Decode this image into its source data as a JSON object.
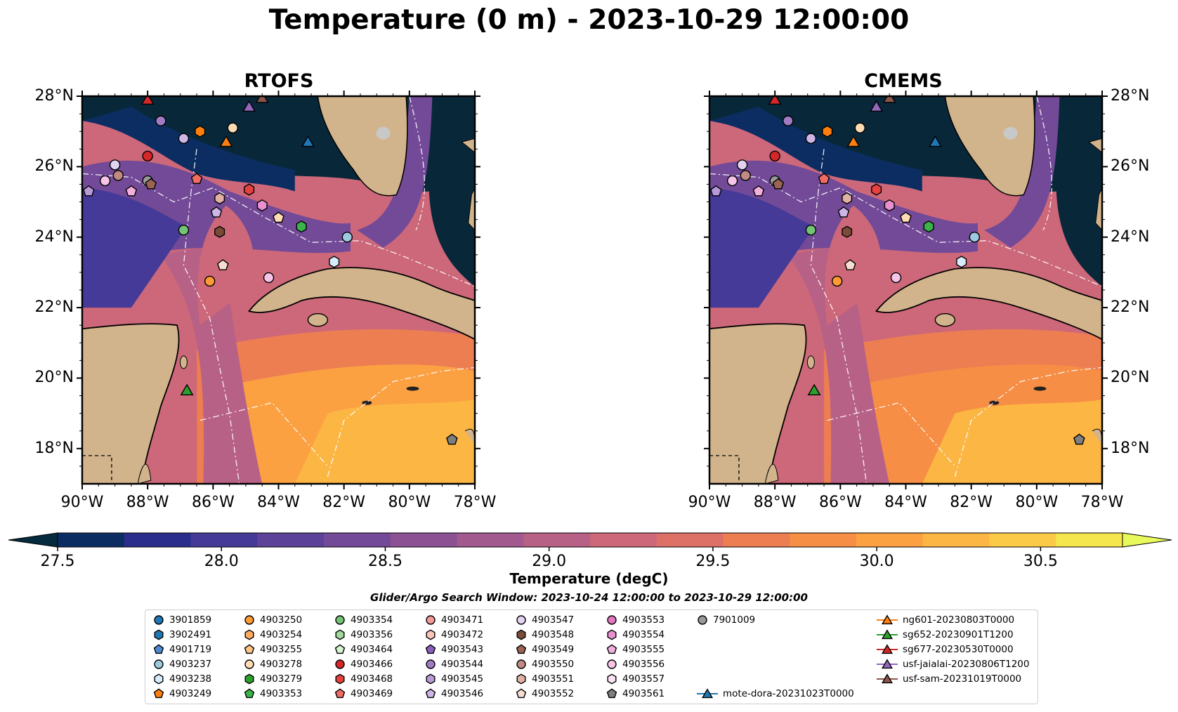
{
  "title": "Temperature (0 m) - 2023-10-29 12:00:00",
  "panels": [
    {
      "title": "RTOFS",
      "ytick_side": "left"
    },
    {
      "title": "CMEMS",
      "ytick_side": "right"
    }
  ],
  "colors": {
    "land": "#d2b48c",
    "ocean_dark": "#08283a",
    "border": "#ffffff"
  },
  "chart_data": {
    "type": "heatmap",
    "map_extent": {
      "lon": [
        -90,
        -78
      ],
      "lat": [
        17,
        28
      ]
    },
    "xticks": [
      "90°W",
      "88°W",
      "86°W",
      "84°W",
      "82°W",
      "80°W",
      "78°W"
    ],
    "yticks": [
      "18°N",
      "20°N",
      "22°N",
      "24°N",
      "26°N",
      "28°N"
    ],
    "colorbar": {
      "label": "Temperature (degC)",
      "range": [
        27.5,
        30.75
      ],
      "extend": "both",
      "ticks": [
        "27.5",
        "28.0",
        "28.5",
        "29.0",
        "29.5",
        "30.0",
        "30.5"
      ],
      "colors": [
        "#062a3e",
        "#0c2d62",
        "#2a2d8b",
        "#453a97",
        "#5c4299",
        "#734a97",
        "#8b5193",
        "#a1598e",
        "#b86186",
        "#cc687a",
        "#dd7168",
        "#ec7e52",
        "#f68e45",
        "#fba142",
        "#fcb644",
        "#fbcb48",
        "#f5e64e",
        "#e8f95c"
      ]
    },
    "subtitle": "Glider/Argo Search Window: 2023-10-24 12:00:00 to 2023-10-29 12:00:00",
    "floats": [
      {
        "name": "3901859",
        "marker": "circle",
        "color": "#1f77b4"
      },
      {
        "name": "3902491",
        "marker": "hexagon",
        "color": "#1f77b4"
      },
      {
        "name": "4901719",
        "marker": "pentagon",
        "color": "#4c8ad4"
      },
      {
        "name": "4903237",
        "marker": "circle",
        "color": "#9ecae1"
      },
      {
        "name": "4903238",
        "marker": "hexagon",
        "color": "#d6ecfa"
      },
      {
        "name": "4903249",
        "marker": "pentagon",
        "color": "#ff7f0e"
      },
      {
        "name": "4903250",
        "marker": "circle",
        "color": "#ff9a35"
      },
      {
        "name": "4903254",
        "marker": "hexagon",
        "color": "#ffab60"
      },
      {
        "name": "4903255",
        "marker": "pentagon",
        "color": "#ffc388"
      },
      {
        "name": "4903278",
        "marker": "circle",
        "color": "#ffdcb3"
      },
      {
        "name": "4903279",
        "marker": "hexagon",
        "color": "#2ca02c"
      },
      {
        "name": "4903353",
        "marker": "pentagon",
        "color": "#3cb34a"
      },
      {
        "name": "4903354",
        "marker": "circle",
        "color": "#74c476"
      },
      {
        "name": "4903356",
        "marker": "hexagon",
        "color": "#a1d99b"
      },
      {
        "name": "4903464",
        "marker": "pentagon",
        "color": "#d5f5cf"
      },
      {
        "name": "4903466",
        "marker": "circle",
        "color": "#d62728"
      },
      {
        "name": "4903468",
        "marker": "hexagon",
        "color": "#e4413f"
      },
      {
        "name": "4903469",
        "marker": "pentagon",
        "color": "#f06b64"
      },
      {
        "name": "4903471",
        "marker": "circle",
        "color": "#f29a97"
      },
      {
        "name": "4903472",
        "marker": "hexagon",
        "color": "#fbc4b8"
      },
      {
        "name": "4903543",
        "marker": "pentagon",
        "color": "#8c5fbf"
      },
      {
        "name": "4903544",
        "marker": "circle",
        "color": "#a07cc5"
      },
      {
        "name": "4903545",
        "marker": "hexagon",
        "color": "#b89ad6"
      },
      {
        "name": "4903546",
        "marker": "pentagon",
        "color": "#cdb6e6"
      },
      {
        "name": "4903547",
        "marker": "circle",
        "color": "#e2d3f0"
      },
      {
        "name": "4903548",
        "marker": "hexagon",
        "color": "#7b4b3a"
      },
      {
        "name": "4903549",
        "marker": "pentagon",
        "color": "#9a6353"
      },
      {
        "name": "4903550",
        "marker": "circle",
        "color": "#c08b80"
      },
      {
        "name": "4903551",
        "marker": "hexagon",
        "color": "#e0b1a4"
      },
      {
        "name": "4903552",
        "marker": "pentagon",
        "color": "#f7dcd2"
      },
      {
        "name": "4903553",
        "marker": "circle",
        "color": "#e377c2"
      },
      {
        "name": "4903554",
        "marker": "hexagon",
        "color": "#ea8fcf"
      },
      {
        "name": "4903555",
        "marker": "pentagon",
        "color": "#f3b0de"
      },
      {
        "name": "4903556",
        "marker": "circle",
        "color": "#f6c5e8"
      },
      {
        "name": "4903557",
        "marker": "hexagon",
        "color": "#fbe3f3"
      },
      {
        "name": "4903561",
        "marker": "pentagon",
        "color": "#7f7f7f"
      },
      {
        "name": "7901009",
        "marker": "circle",
        "color": "#9a9a9a"
      }
    ],
    "gliders": [
      {
        "name": "mote-dora-20231023T0000",
        "color": "#1f77b4"
      },
      {
        "name": "ng601-20230803T0000",
        "color": "#ff7f0e"
      },
      {
        "name": "sg652-20230901T1200",
        "color": "#2ca02c"
      },
      {
        "name": "sg677-20230530T0000",
        "color": "#d62728"
      },
      {
        "name": "usf-jaialai-20230806T1200",
        "color": "#9467bd"
      },
      {
        "name": "usf-sam-20231019T0000",
        "color": "#8c564b"
      }
    ],
    "float_positions": [
      {
        "lon": -88.0,
        "lat": 26.3,
        "color": "#d62728",
        "marker": "circle"
      },
      {
        "lon": -87.6,
        "lat": 27.3,
        "color": "#a07cc5",
        "marker": "circle"
      },
      {
        "lon": -86.9,
        "lat": 26.8,
        "color": "#cdb6e6",
        "marker": "circle"
      },
      {
        "lon": -86.4,
        "lat": 27.0,
        "color": "#ff7f0e",
        "marker": "hexagon"
      },
      {
        "lon": -85.4,
        "lat": 27.1,
        "color": "#ffdcb3",
        "marker": "circle"
      },
      {
        "lon": -89.0,
        "lat": 26.05,
        "color": "#e2d3f0",
        "marker": "circle"
      },
      {
        "lon": -89.3,
        "lat": 25.6,
        "color": "#f6c5e8",
        "marker": "circle"
      },
      {
        "lon": -88.9,
        "lat": 25.75,
        "color": "#c08b80",
        "marker": "circle"
      },
      {
        "lon": -88.0,
        "lat": 25.6,
        "color": "#9a9a9a",
        "marker": "circle"
      },
      {
        "lon": -87.9,
        "lat": 25.5,
        "color": "#9a6353",
        "marker": "pentagon"
      },
      {
        "lon": -89.8,
        "lat": 25.3,
        "color": "#b89ad6",
        "marker": "pentagon"
      },
      {
        "lon": -88.5,
        "lat": 25.3,
        "color": "#f3b0de",
        "marker": "pentagon"
      },
      {
        "lon": -86.5,
        "lat": 25.65,
        "color": "#f06b64",
        "marker": "pentagon"
      },
      {
        "lon": -85.8,
        "lat": 25.1,
        "color": "#e0b1a4",
        "marker": "hexagon"
      },
      {
        "lon": -84.9,
        "lat": 25.35,
        "color": "#e4413f",
        "marker": "hexagon"
      },
      {
        "lon": -84.5,
        "lat": 24.9,
        "color": "#ea8fcf",
        "marker": "hexagon"
      },
      {
        "lon": -85.9,
        "lat": 24.7,
        "color": "#cdb6e6",
        "marker": "pentagon"
      },
      {
        "lon": -84.0,
        "lat": 24.55,
        "color": "#ffdcb3",
        "marker": "pentagon"
      },
      {
        "lon": -83.3,
        "lat": 24.3,
        "color": "#3cb34a",
        "marker": "hexagon"
      },
      {
        "lon": -86.9,
        "lat": 24.2,
        "color": "#74c476",
        "marker": "circle"
      },
      {
        "lon": -85.8,
        "lat": 24.15,
        "color": "#7b4b3a",
        "marker": "hexagon"
      },
      {
        "lon": -81.9,
        "lat": 24.0,
        "color": "#9ecae1",
        "marker": "circle"
      },
      {
        "lon": -85.7,
        "lat": 23.2,
        "color": "#f7dcd2",
        "marker": "pentagon"
      },
      {
        "lon": -82.3,
        "lat": 23.3,
        "color": "#d6ecfa",
        "marker": "hexagon"
      },
      {
        "lon": -86.1,
        "lat": 22.75,
        "color": "#ff9a35",
        "marker": "circle"
      },
      {
        "lon": -84.3,
        "lat": 22.85,
        "color": "#f6c5e8",
        "marker": "circle"
      },
      {
        "lon": -78.7,
        "lat": 18.25,
        "color": "#7f7f7f",
        "marker": "pentagon"
      }
    ],
    "glider_positions": [
      {
        "lon": -88.0,
        "lat": 27.9,
        "color": "#d62728"
      },
      {
        "lon": -84.5,
        "lat": 27.95,
        "color": "#8c564b"
      },
      {
        "lon": -84.9,
        "lat": 27.7,
        "color": "#9467bd"
      },
      {
        "lon": -85.6,
        "lat": 26.7,
        "color": "#ff7f0e"
      },
      {
        "lon": -83.1,
        "lat": 26.7,
        "color": "#1f77b4"
      },
      {
        "lon": -86.8,
        "lat": 19.65,
        "color": "#2ca02c"
      }
    ]
  }
}
